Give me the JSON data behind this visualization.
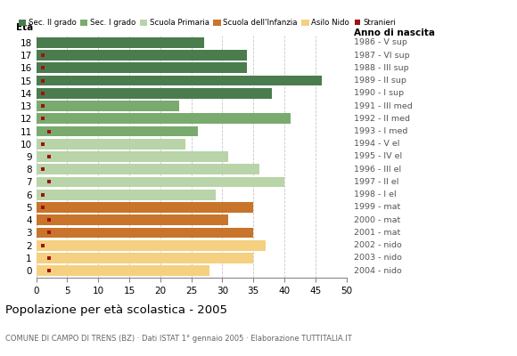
{
  "ages": [
    18,
    17,
    16,
    15,
    14,
    13,
    12,
    11,
    10,
    9,
    8,
    7,
    6,
    5,
    4,
    3,
    2,
    1,
    0
  ],
  "values": [
    27,
    34,
    34,
    46,
    38,
    23,
    41,
    26,
    24,
    31,
    36,
    40,
    29,
    35,
    31,
    35,
    37,
    35,
    28
  ],
  "stranieri": [
    0,
    1,
    1,
    1,
    1,
    1,
    1,
    2,
    1,
    2,
    1,
    2,
    1,
    1,
    2,
    2,
    1,
    2,
    2
  ],
  "bar_colors": {
    "18": "#4a7c4e",
    "17": "#4a7c4e",
    "16": "#4a7c4e",
    "15": "#4a7c4e",
    "14": "#4a7c4e",
    "13": "#7aab6e",
    "12": "#7aab6e",
    "11": "#7aab6e",
    "10": "#b8d4a8",
    "9": "#b8d4a8",
    "8": "#b8d4a8",
    "7": "#b8d4a8",
    "6": "#b8d4a8",
    "5": "#c8742a",
    "4": "#c8742a",
    "3": "#c8742a",
    "2": "#f5d080",
    "1": "#f5d080",
    "0": "#f5d080"
  },
  "anno_labels": {
    "18": "1986 - V sup",
    "17": "1987 - VI sup",
    "16": "1988 - III sup",
    "15": "1989 - II sup",
    "14": "1990 - I sup",
    "13": "1991 - III med",
    "12": "1992 - II med",
    "11": "1993 - I med",
    "10": "1994 - V el",
    "9": "1995 - IV el",
    "8": "1996 - III el",
    "7": "1997 - II el",
    "6": "1998 - I el",
    "5": "1999 - mat",
    "4": "2000 - mat",
    "3": "2001 - mat",
    "2": "2002 - nido",
    "1": "2003 - nido",
    "0": "2004 - nido"
  },
  "legend_labels": [
    "Sec. II grado",
    "Sec. I grado",
    "Scuola Primaria",
    "Scuola dell'Infanzia",
    "Asilo Nido",
    "Stranieri"
  ],
  "legend_colors": [
    "#4a7c4e",
    "#7aab6e",
    "#b8d4a8",
    "#c8742a",
    "#f5d080",
    "#a01010"
  ],
  "title": "Popolazione per età scolastica - 2005",
  "subtitle": "COMUNE DI CAMPO DI TRENS (BZ) · Dati ISTAT 1° gennaio 2005 · Elaborazione TUTTITALIA.IT",
  "xlabel_eta": "Età",
  "xlabel_anno": "Anno di nascita",
  "xlim": [
    0,
    50
  ],
  "xticks": [
    0,
    5,
    10,
    15,
    20,
    25,
    30,
    35,
    40,
    45,
    50
  ],
  "stranieri_color": "#a01010",
  "stranieri_size": 3.5,
  "grid_color": "#c8c8c8",
  "bg_color": "#ffffff",
  "bar_height": 0.82
}
